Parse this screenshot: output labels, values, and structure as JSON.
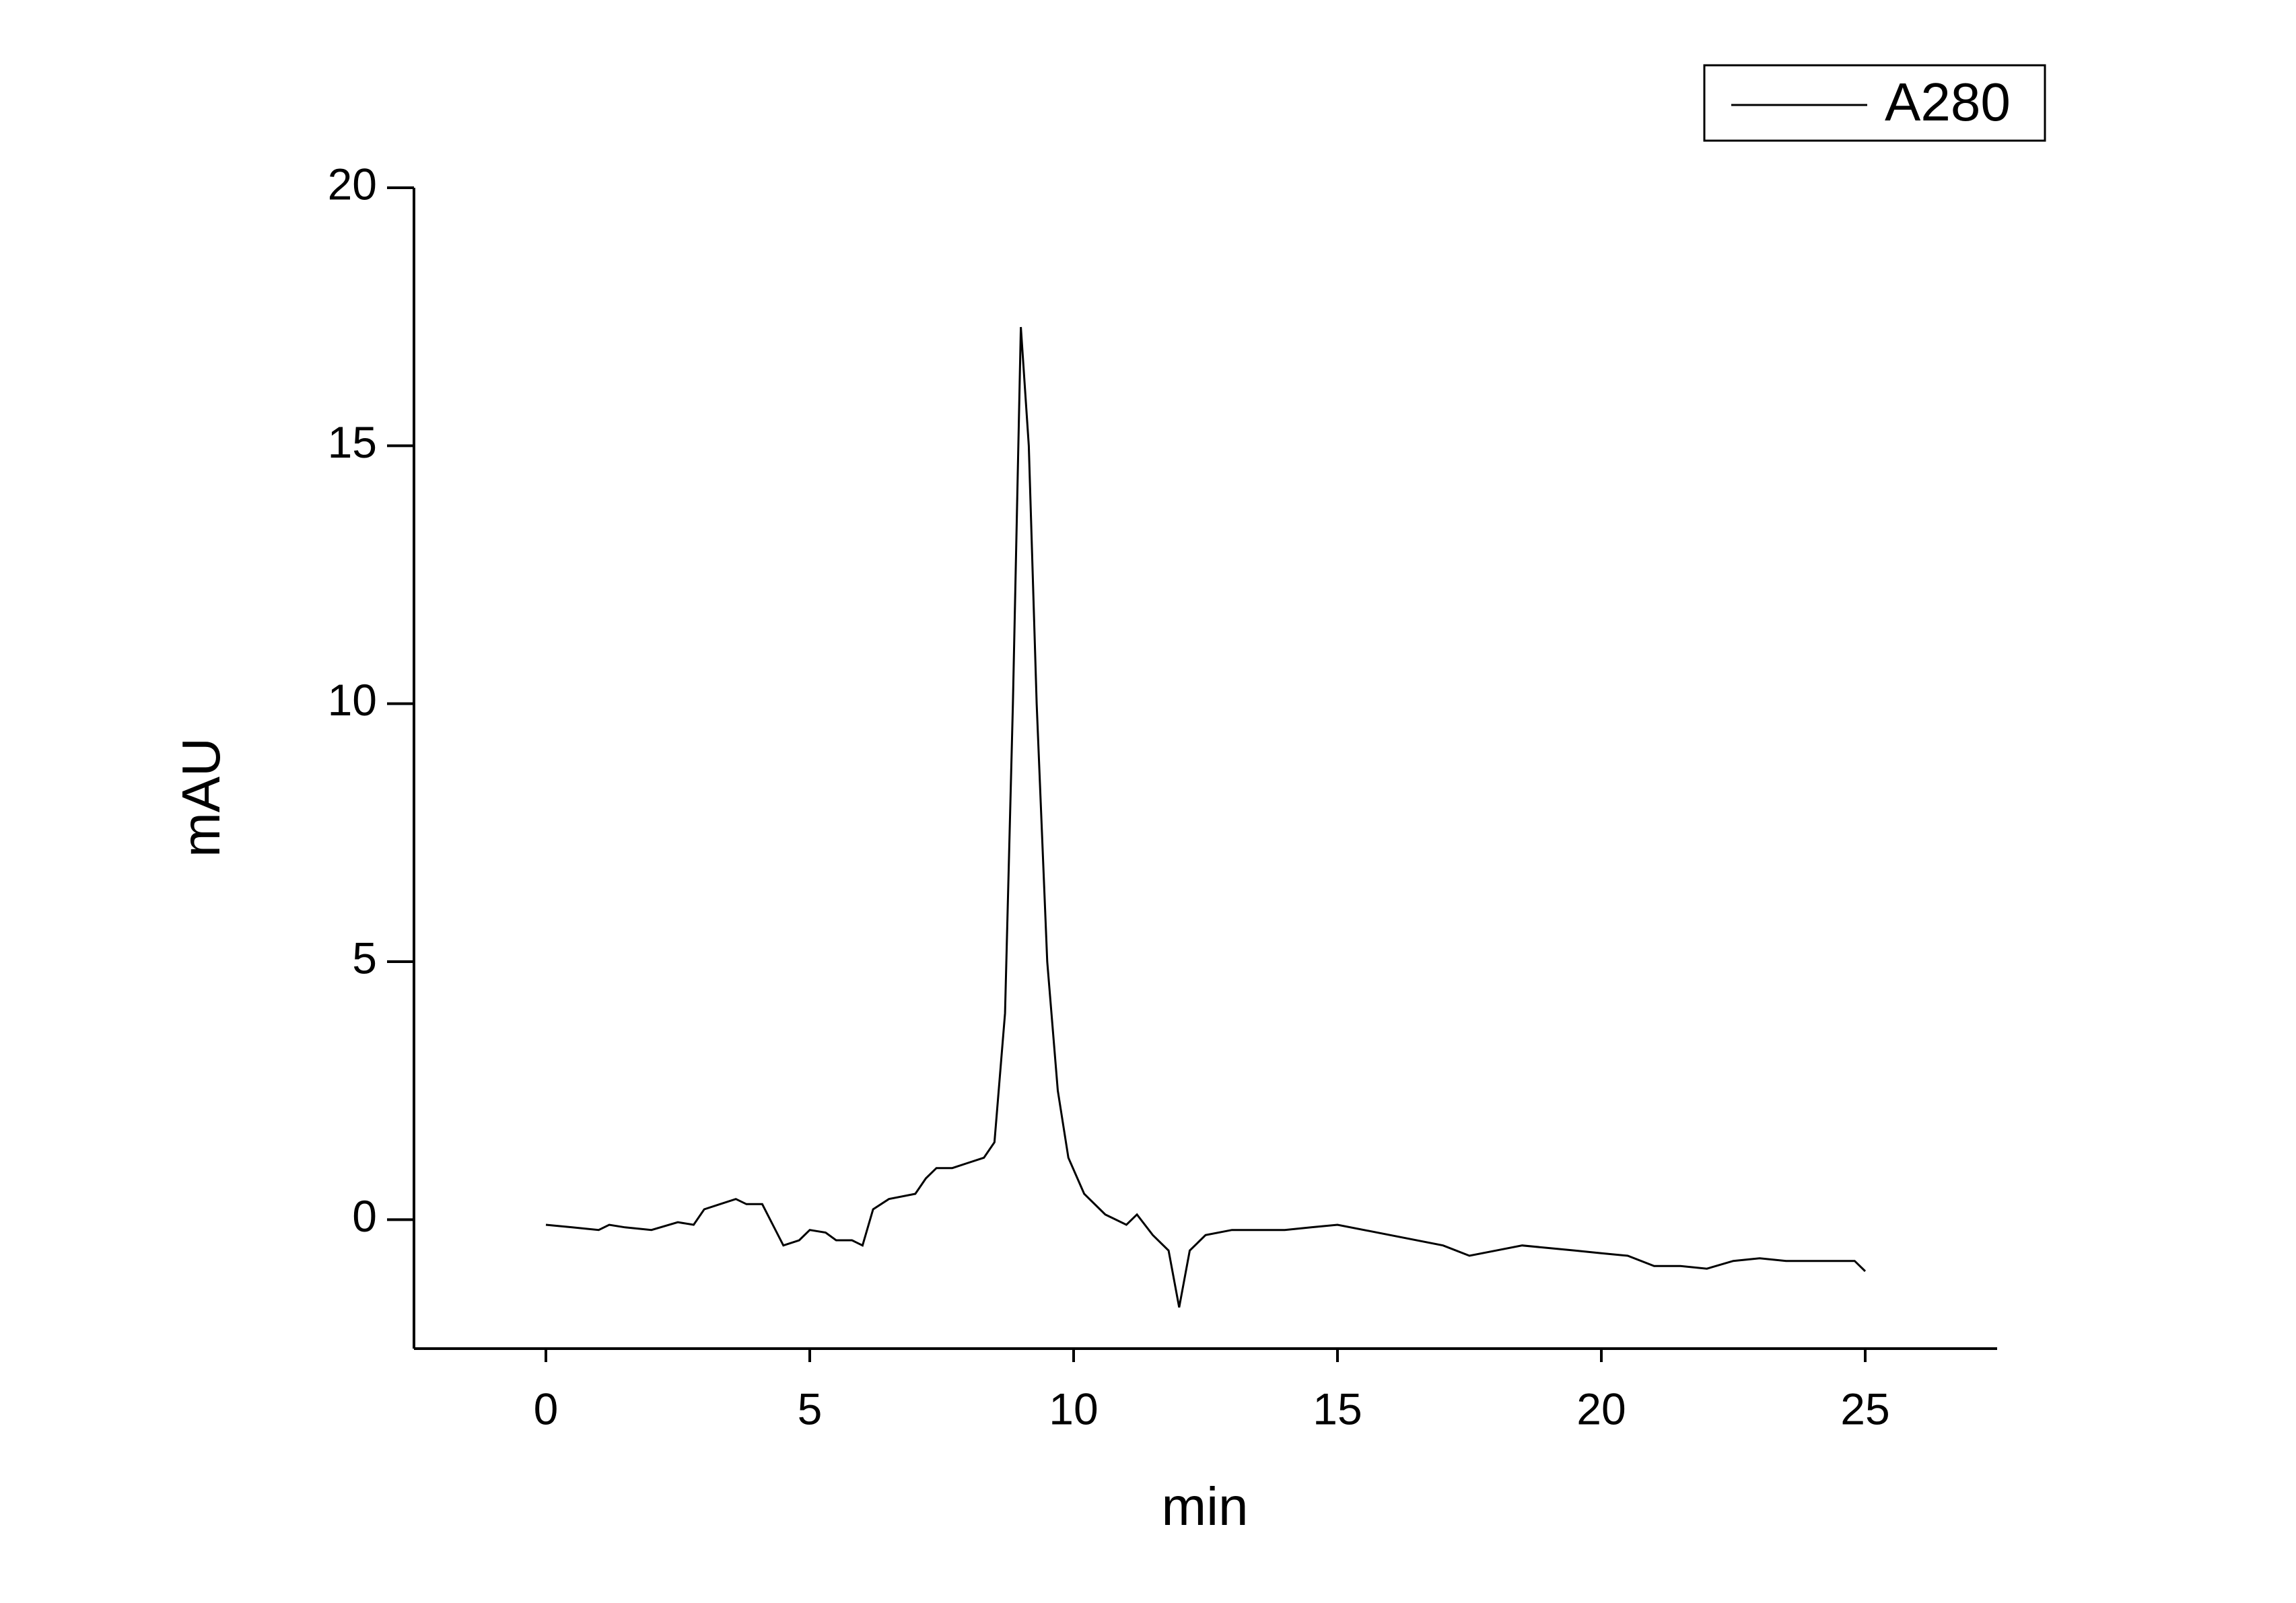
{
  "chart_data": {
    "type": "line",
    "x_label": "min",
    "y_label": "mAU",
    "xlim": [
      -2.5,
      27.5
    ],
    "xticks": [
      0,
      5,
      10,
      15,
      20,
      25
    ],
    "ylim": [
      -2.5,
      20
    ],
    "yticks": [
      0,
      5,
      10,
      15,
      20
    ],
    "x": [
      0,
      0.5,
      1,
      1.2,
      1.5,
      2,
      2.5,
      2.8,
      3,
      3.3,
      3.6,
      3.8,
      4.1,
      4.3,
      4.5,
      4.8,
      5,
      5.3,
      5.5,
      5.8,
      6,
      6.2,
      6.5,
      7,
      7.2,
      7.4,
      7.7,
      8,
      8.3,
      8.5,
      8.7,
      8.85,
      9,
      9.15,
      9.3,
      9.5,
      9.7,
      9.9,
      10.2,
      10.6,
      11,
      11.2,
      11.5,
      11.8,
      12,
      12.2,
      12.5,
      13,
      14,
      14.5,
      15,
      16,
      17,
      17.5,
      18,
      18.5,
      19,
      19.5,
      20,
      20.5,
      21,
      21.5,
      22,
      22.5,
      23,
      23.5,
      24,
      24.5,
      24.8,
      25
    ],
    "series": [
      {
        "name": "A280",
        "color": "#000000",
        "values": [
          -0.1,
          -0.15,
          -0.2,
          -0.1,
          -0.15,
          -0.2,
          -0.05,
          -0.1,
          0.2,
          0.3,
          0.4,
          0.3,
          0.3,
          -0.1,
          -0.5,
          -0.4,
          -0.2,
          -0.25,
          -0.4,
          -0.4,
          -0.5,
          0.2,
          0.4,
          0.5,
          0.8,
          1.0,
          1.0,
          1.1,
          1.2,
          1.5,
          4,
          10,
          17.3,
          15,
          10,
          5,
          2.5,
          1.2,
          0.5,
          0.1,
          -0.1,
          0.1,
          -0.3,
          -0.6,
          -1.7,
          -0.6,
          -0.3,
          -0.2,
          -0.2,
          -0.15,
          -0.1,
          -0.3,
          -0.5,
          -0.7,
          -0.6,
          -0.5,
          -0.55,
          -0.6,
          -0.65,
          -0.7,
          -0.9,
          -0.9,
          -0.95,
          -0.8,
          -0.75,
          -0.8,
          -0.8,
          -0.8,
          -0.8,
          -1.0
        ]
      }
    ]
  }
}
